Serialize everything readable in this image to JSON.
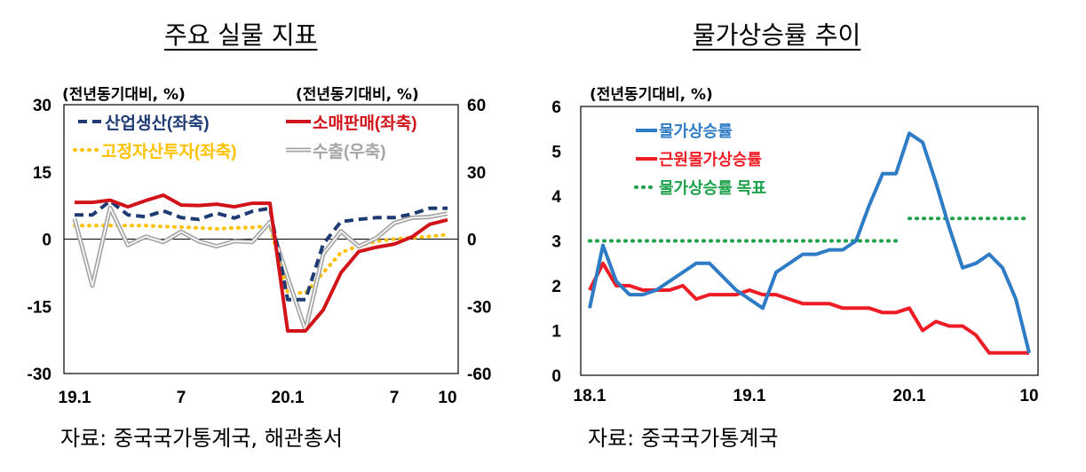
{
  "charts": [
    {
      "title": "주요 실물 지표",
      "unit_left": "(전년동기대비, %)",
      "unit_right": "(전년동기대비, %)",
      "source": "자료: 중국국가통계국, 해관총서"
    },
    {
      "title": "물가상승률 추이",
      "unit_left": "(전년동기대비, %)",
      "source": "자료: 중국국가통계국"
    }
  ],
  "chart_data": [
    {
      "type": "line",
      "title": "주요 실물 지표",
      "x": [
        "19.1",
        "19.2",
        "19.3",
        "19.4",
        "19.5",
        "19.6",
        "19.7",
        "19.8",
        "19.9",
        "19.10",
        "19.11",
        "19.12",
        "20.1",
        "20.2",
        "20.3",
        "20.4",
        "20.5",
        "20.6",
        "20.7",
        "20.8",
        "20.9",
        "20.10"
      ],
      "x_tick_labels": [
        {
          "at": "19.1",
          "label": "19.1"
        },
        {
          "at": "19.7",
          "label": "7"
        },
        {
          "at": "20.1",
          "label": "20.1"
        },
        {
          "at": "20.7",
          "label": "7"
        },
        {
          "at": "20.10",
          "label": "10"
        }
      ],
      "y_left": {
        "min": -30,
        "max": 30,
        "ticks": [
          30,
          15,
          0,
          -15,
          -30
        ]
      },
      "y_right": {
        "min": -60,
        "max": 60,
        "ticks": [
          60,
          30,
          0,
          -30,
          -60
        ]
      },
      "grid": false,
      "series": [
        {
          "name": "산업생산(좌축)",
          "axis": "left",
          "color": "#1f3b73",
          "style": "dashed",
          "values": [
            5.4,
            5.4,
            8.5,
            5.4,
            5.0,
            6.3,
            4.8,
            4.4,
            5.8,
            4.7,
            6.2,
            6.9,
            -13.5,
            -13.5,
            -1.1,
            3.9,
            4.4,
            4.8,
            4.8,
            5.6,
            6.9,
            6.9
          ]
        },
        {
          "name": "소매판매(좌축)",
          "axis": "left",
          "color": "#d0141a",
          "style": "solid",
          "values": [
            8.2,
            8.2,
            8.7,
            7.2,
            8.6,
            9.8,
            7.6,
            7.5,
            7.8,
            7.2,
            8.0,
            8.0,
            -20.5,
            -20.5,
            -15.8,
            -7.5,
            -2.8,
            -1.8,
            -1.1,
            0.5,
            3.3,
            4.3
          ]
        },
        {
          "name": "고정자산투자(좌축)",
          "axis": "left",
          "color": "#ffc000",
          "style": "dotted",
          "values": [
            3.0,
            3.0,
            3.0,
            3.0,
            3.0,
            2.8,
            2.7,
            2.5,
            2.3,
            2.5,
            2.6,
            3.0,
            -12.0,
            -12.0,
            -7.5,
            -3.0,
            -1.5,
            -0.5,
            0.0,
            0.3,
            0.6,
            1.0
          ]
        },
        {
          "name": "수출(우축)",
          "axis": "right",
          "color": "#a6a6a6",
          "style": "double",
          "values": [
            9.1,
            -20.8,
            14.0,
            -2.7,
            1.1,
            -1.3,
            3.3,
            -1.0,
            -3.2,
            -0.9,
            -1.3,
            7.6,
            -17.2,
            -40.6,
            -6.6,
            3.5,
            -3.3,
            0.5,
            7.2,
            9.5,
            9.9,
            11.4
          ]
        }
      ]
    },
    {
      "type": "line",
      "title": "물가상승률 추이",
      "x_tick_labels": [
        {
          "at": 0,
          "label": "18.1"
        },
        {
          "at": 12,
          "label": "19.1"
        },
        {
          "at": 24,
          "label": "20.1"
        },
        {
          "at": 33,
          "label": "10"
        }
      ],
      "y": {
        "min": 0,
        "max": 6,
        "ticks": [
          6,
          5,
          4,
          3,
          2,
          1,
          0
        ]
      },
      "grid": false,
      "series": [
        {
          "name": "물가상승률",
          "color": "#2e7cc6",
          "style": "solid",
          "values": [
            1.5,
            2.9,
            2.1,
            1.8,
            1.8,
            1.9,
            2.1,
            2.3,
            2.5,
            2.5,
            2.2,
            1.9,
            1.7,
            1.5,
            2.3,
            2.5,
            2.7,
            2.7,
            2.8,
            2.8,
            3.0,
            3.8,
            4.5,
            4.5,
            5.4,
            5.2,
            4.3,
            3.3,
            2.4,
            2.5,
            2.7,
            2.4,
            1.7,
            0.5
          ]
        },
        {
          "name": "근원물가상승률",
          "color": "#ee1c25",
          "style": "solid",
          "values": [
            1.9,
            2.5,
            2.0,
            2.0,
            1.9,
            1.9,
            1.9,
            2.0,
            1.7,
            1.8,
            1.8,
            1.8,
            1.9,
            1.8,
            1.8,
            1.7,
            1.6,
            1.6,
            1.6,
            1.5,
            1.5,
            1.5,
            1.4,
            1.4,
            1.5,
            1.0,
            1.2,
            1.1,
            1.1,
            0.9,
            0.5,
            0.5,
            0.5,
            0.5
          ]
        },
        {
          "name": "물가상승률 목표",
          "color": "#1aa14a",
          "style": "dotted",
          "segments": [
            {
              "from": 0,
              "to": 23,
              "value": 3.0
            },
            {
              "from": 24,
              "to": 33,
              "value": 3.5
            }
          ]
        }
      ]
    }
  ]
}
